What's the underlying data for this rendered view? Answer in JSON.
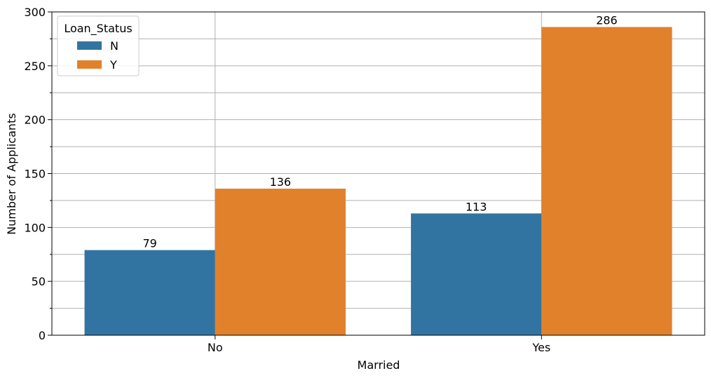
{
  "chart_data": {
    "type": "bar",
    "title": "",
    "xlabel": "Married",
    "ylabel": "Number of Applicants",
    "categories": [
      "No",
      "Yes"
    ],
    "series": [
      {
        "name": "N",
        "values": [
          79,
          113
        ],
        "color": "#3274a1"
      },
      {
        "name": "Y",
        "values": [
          136,
          286
        ],
        "color": "#e1812c"
      }
    ],
    "data_labels": [
      [
        "79",
        "113"
      ],
      [
        "136",
        "286"
      ]
    ],
    "ylim": [
      0,
      300
    ],
    "yticks": [
      0,
      50,
      100,
      150,
      200,
      250,
      300
    ],
    "ytick_labels": [
      "0",
      "50",
      "100",
      "150",
      "200",
      "250",
      "300"
    ],
    "y_minor_ticks": [
      25,
      75,
      125,
      175,
      225,
      275
    ],
    "grid": true,
    "legend": {
      "title": "Loan_Status",
      "placement": "top-left",
      "entries": [
        "N",
        "Y"
      ]
    }
  }
}
